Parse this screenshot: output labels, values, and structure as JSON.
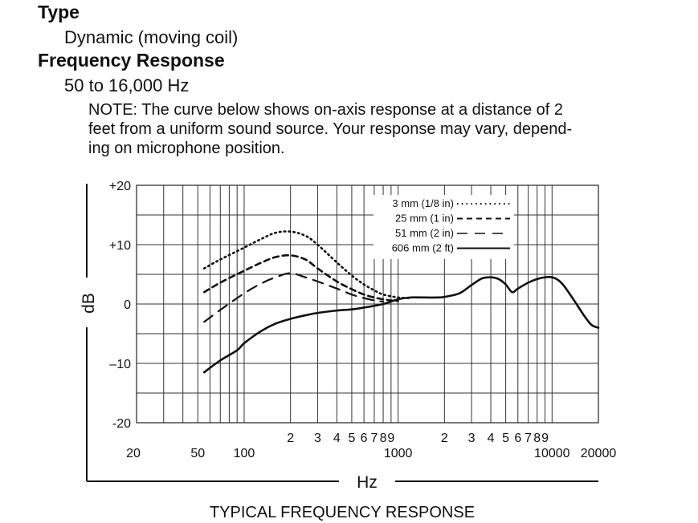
{
  "spec": {
    "type_heading": "Type",
    "type_value": "Dynamic (moving coil)",
    "freq_heading": "Frequency Response",
    "freq_value": "50 to 16,000 Hz",
    "note_lines": [
      "NOTE: The curve below shows on-axis response at a distance of 2",
      "feet from a uniform sound source. Your response may vary, depend-",
      "ing on microphone position."
    ]
  },
  "chart_data": {
    "type": "line",
    "title": "TYPICAL FREQUENCY RESPONSE",
    "xlabel": "Hz",
    "ylabel": "dB",
    "x_scale": "log",
    "xlim": [
      20,
      20000
    ],
    "ylim": [
      -20,
      20
    ],
    "y_ticks": [
      "+20",
      "+10",
      "0",
      "–10",
      "-20"
    ],
    "y_tick_values": [
      20,
      10,
      0,
      -10,
      -20
    ],
    "x_ticks_bottom": [
      {
        "value": 20,
        "label": "20"
      },
      {
        "value": 50,
        "label": "50"
      },
      {
        "value": 100,
        "label": "100"
      },
      {
        "value": 1000,
        "label": "1000"
      },
      {
        "value": 10000,
        "label": "10000"
      },
      {
        "value": 20000,
        "label": "20000"
      }
    ],
    "x_ticks_top": [
      {
        "value": 200,
        "label": "2"
      },
      {
        "value": 300,
        "label": "3"
      },
      {
        "value": 400,
        "label": "4"
      },
      {
        "value": 500,
        "label": "5"
      },
      {
        "value": 600,
        "label": "6"
      },
      {
        "value": 700,
        "label": "7"
      },
      {
        "value": 800,
        "label": "8"
      },
      {
        "value": 900,
        "label": "9"
      },
      {
        "value": 2000,
        "label": "2"
      },
      {
        "value": 3000,
        "label": "3"
      },
      {
        "value": 4000,
        "label": "4"
      },
      {
        "value": 5000,
        "label": "5"
      },
      {
        "value": 6000,
        "label": "6"
      },
      {
        "value": 7000,
        "label": "7"
      },
      {
        "value": 8000,
        "label": "8"
      },
      {
        "value": 9000,
        "label": "9"
      }
    ],
    "grid": true,
    "legend_position": "top-right",
    "series": [
      {
        "name": "3 mm (1/8 in)",
        "style": "dotted",
        "x": [
          55,
          70,
          100,
          130,
          160,
          200,
          250,
          300,
          400,
          500,
          600,
          700,
          800,
          1000,
          1200
        ],
        "y": [
          6,
          7.5,
          9.5,
          11,
          12,
          12.2,
          11.5,
          10,
          7,
          4.8,
          3.3,
          2.3,
          1.6,
          1.1,
          1
        ]
      },
      {
        "name": "25 mm (1 in)",
        "style": "dashed",
        "x": [
          55,
          70,
          100,
          130,
          160,
          200,
          250,
          300,
          400,
          500,
          600,
          700,
          800,
          900,
          1000
        ],
        "y": [
          2,
          3.6,
          5.6,
          7,
          7.9,
          8.2,
          7.5,
          6,
          3.8,
          2.5,
          1.6,
          1.1,
          0.8,
          0.6,
          0.5
        ]
      },
      {
        "name": "51 mm (2 in)",
        "style": "longdash",
        "x": [
          55,
          70,
          100,
          130,
          160,
          200,
          250,
          300,
          400,
          500,
          600,
          700,
          800
        ],
        "y": [
          -3,
          -1,
          1.8,
          3.5,
          4.5,
          5.2,
          4.5,
          3.8,
          2.6,
          1.6,
          1,
          0.6,
          0.4
        ]
      },
      {
        "name": "606 mm (2 ft)",
        "style": "solid",
        "x": [
          55,
          70,
          90,
          100,
          130,
          160,
          200,
          250,
          300,
          400,
          500,
          600,
          800,
          1000,
          1200,
          1500,
          1800,
          2000,
          2500,
          3000,
          3500,
          4000,
          4500,
          5000,
          5500,
          6000,
          7000,
          8000,
          9000,
          10000,
          11000,
          12000,
          14000,
          16000,
          18000,
          20000
        ],
        "y": [
          -11.5,
          -9.5,
          -7.8,
          -6.6,
          -4.5,
          -3.3,
          -2.5,
          -1.9,
          -1.5,
          -1.1,
          -0.9,
          -0.6,
          0,
          0.8,
          1.1,
          1.1,
          1.1,
          1.2,
          1.8,
          3.2,
          4.3,
          4.5,
          4.2,
          3.3,
          2,
          2.6,
          3.6,
          4.2,
          4.5,
          4.5,
          4,
          3,
          0.5,
          -1.8,
          -3.5,
          -4
        ]
      }
    ]
  }
}
